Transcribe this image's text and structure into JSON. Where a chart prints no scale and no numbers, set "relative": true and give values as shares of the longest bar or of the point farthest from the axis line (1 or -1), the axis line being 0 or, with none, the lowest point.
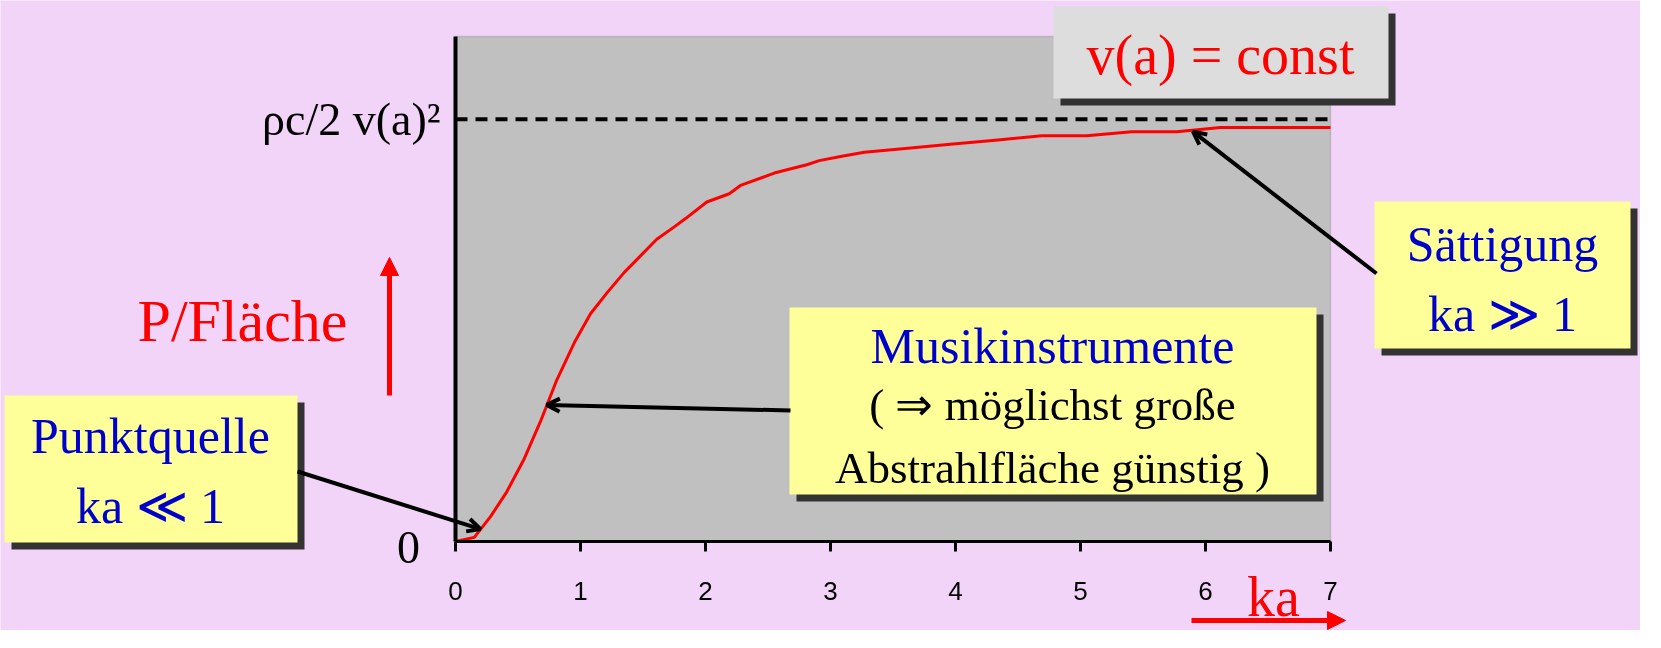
{
  "chart_data": {
    "type": "line",
    "relative": true,
    "xlabel": "ka",
    "ylabel": "P/Fläche",
    "x": [
      0,
      0.15,
      0.28,
      0.41,
      0.55,
      0.68,
      0.81,
      0.95,
      1.08,
      1.21,
      1.35,
      1.48,
      1.61,
      1.75,
      1.84,
      2.01,
      2.19,
      2.28,
      2.55,
      2.81,
      2.91,
      3.08,
      3.27,
      3.62,
      3.98,
      4.34,
      4.69,
      5.05,
      5.41,
      5.77,
      6.12,
      6.48,
      7.0
    ],
    "series": [
      {
        "color": "#ff0000",
        "values": [
          0,
          0.01,
          0.06,
          0.12,
          0.2,
          0.29,
          0.39,
          0.48,
          0.55,
          0.6,
          0.65,
          0.69,
          0.73,
          0.76,
          0.78,
          0.82,
          0.84,
          0.86,
          0.89,
          0.91,
          0.92,
          0.93,
          0.94,
          0.95,
          0.96,
          0.97,
          0.98,
          0.98,
          0.99,
          0.99,
          1,
          1,
          1
        ]
      }
    ],
    "xlim": [
      0,
      7
    ],
    "xticks": [
      0,
      1,
      2,
      3,
      4,
      5,
      6,
      7
    ],
    "ref_lines": [
      {
        "axis": "y",
        "value": 1.02,
        "label": "ρc/2 v(a)²",
        "color": "#000000",
        "line_style": "dashed"
      }
    ],
    "annotations": [
      "v(a) = const",
      {
        "text": "Sättigung\nka ≫ 1",
        "x": 5.9,
        "y": 0.99
      },
      "Musikinstrumente",
      {
        "text": "( ⇒ möglichst große\nAbstrahlfläche günstig )",
        "x": 0.73,
        "y": 0.33
      },
      {
        "text": "Punktquelle\nka ≪ 1",
        "x": 0.2,
        "y": 0.03
      },
      "0"
    ]
  }
}
